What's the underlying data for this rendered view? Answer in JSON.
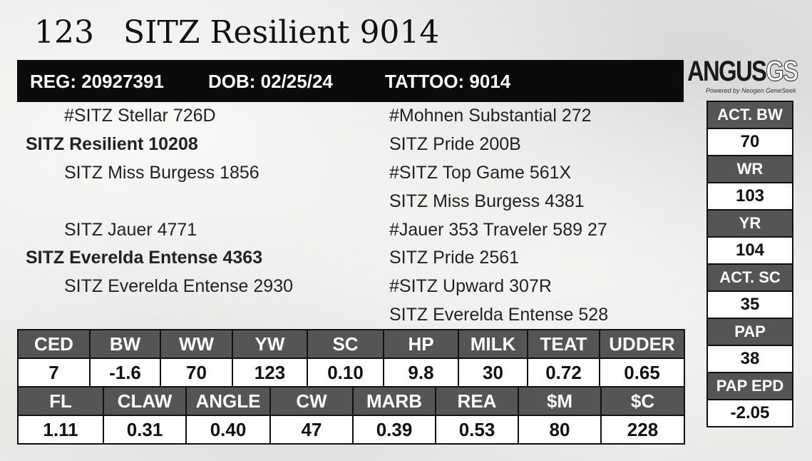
{
  "header": {
    "lot_number": "123",
    "animal_name": "SITZ Resilient 9014",
    "reg": "REG: 20927391",
    "dob": "DOB: 02/25/24",
    "tattoo": "TATTOO: 9014"
  },
  "logo": {
    "main": "ANGUS",
    "suffix": "GS",
    "tagline": "Powered by Neogen GeneSeek"
  },
  "pedigree": {
    "sire_sire": "#SITZ Stellar 726D",
    "sire": "SITZ Resilient 10208",
    "sire_dam": "SITZ Miss Burgess 1856",
    "dam_sire": "SITZ Jauer 4771",
    "dam": "SITZ Everelda Entense 4363",
    "dam_dam": "SITZ Everelda Entense 2930",
    "ancestors": [
      "#Mohnen Substantial 272",
      "SITZ Pride 200B",
      "#SITZ Top Game 561X",
      "SITZ Miss Burgess 4381",
      "#Jauer 353 Traveler 589 27",
      "SITZ Pride 2561",
      "#SITZ Upward 307R",
      "SITZ Everelda Entense 528"
    ]
  },
  "epd_row1": {
    "headers": [
      "CED",
      "BW",
      "WW",
      "YW",
      "SC",
      "HP",
      "MILK",
      "TEAT",
      "UDDER"
    ],
    "values": [
      "7",
      "-1.6",
      "70",
      "123",
      "0.10",
      "9.8",
      "30",
      "0.72",
      "0.65"
    ]
  },
  "epd_row2": {
    "headers": [
      "FL",
      "CLAW",
      "ANGLE",
      "CW",
      "MARB",
      "REA",
      "$M",
      "$C"
    ],
    "values": [
      "1.11",
      "0.31",
      "0.40",
      "47",
      "0.39",
      "0.53",
      "80",
      "228"
    ]
  },
  "side_stats": [
    {
      "label": "ACT. BW",
      "value": "70"
    },
    {
      "label": "WR",
      "value": "103"
    },
    {
      "label": "YR",
      "value": "104"
    },
    {
      "label": "ACT. SC",
      "value": "35"
    },
    {
      "label": "PAP",
      "value": "38"
    },
    {
      "label": "PAP EPD",
      "value": "-2.05"
    }
  ]
}
